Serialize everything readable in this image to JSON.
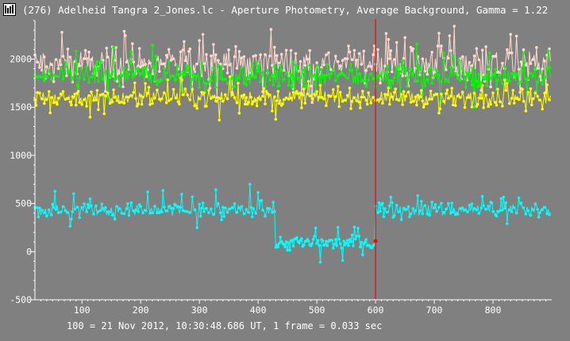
{
  "window": {
    "title": "(276) Adelheid Tangra 2_Jones.lc - Aperture Photometry, Average Background, Gamma = 1.22",
    "icon": "lightcurve-app-icon"
  },
  "footer": {
    "timing_text": "100 = 21 Nov 2012, 10:30:48.686 UT, 1 frame = 0.033 sec"
  },
  "chart_data": {
    "type": "line",
    "title": "",
    "xlabel": "",
    "ylabel": "",
    "xlim": [
      20,
      900
    ],
    "ylim": [
      -500,
      2400
    ],
    "x_ticks": [
      100,
      200,
      300,
      400,
      500,
      600,
      700,
      800
    ],
    "y_ticks": [
      -500,
      0,
      500,
      1000,
      1500,
      2000
    ],
    "grid": false,
    "legend": "none",
    "cursor_x": 600,
    "series": [
      {
        "color": "#ffd8d0",
        "baseline": 1960,
        "noise": 150,
        "spike_prob": 0.12,
        "spike": 230,
        "segments": [
          [
            20,
            900,
            1960
          ]
        ]
      },
      {
        "color": "#00ff00",
        "baseline": 1820,
        "noise": 110,
        "spike_prob": 0.08,
        "spike": 200,
        "segments": [
          [
            20,
            900,
            1820
          ]
        ]
      },
      {
        "color": "#ffff00",
        "baseline": 1600,
        "noise": 80,
        "spike_prob": 0.06,
        "spike": 180,
        "segments": [
          [
            20,
            900,
            1600
          ]
        ]
      },
      {
        "color": "#00ffff",
        "baseline": 430,
        "noise": 70,
        "spike_prob": 0.06,
        "spike": 150,
        "segments": [
          [
            20,
            430,
            430
          ],
          [
            430,
            600,
            90
          ],
          [
            600,
            900,
            440
          ]
        ]
      }
    ],
    "colors": {
      "background": "#808080",
      "axis": "#ffffff",
      "cursor": "#ff0000"
    }
  }
}
